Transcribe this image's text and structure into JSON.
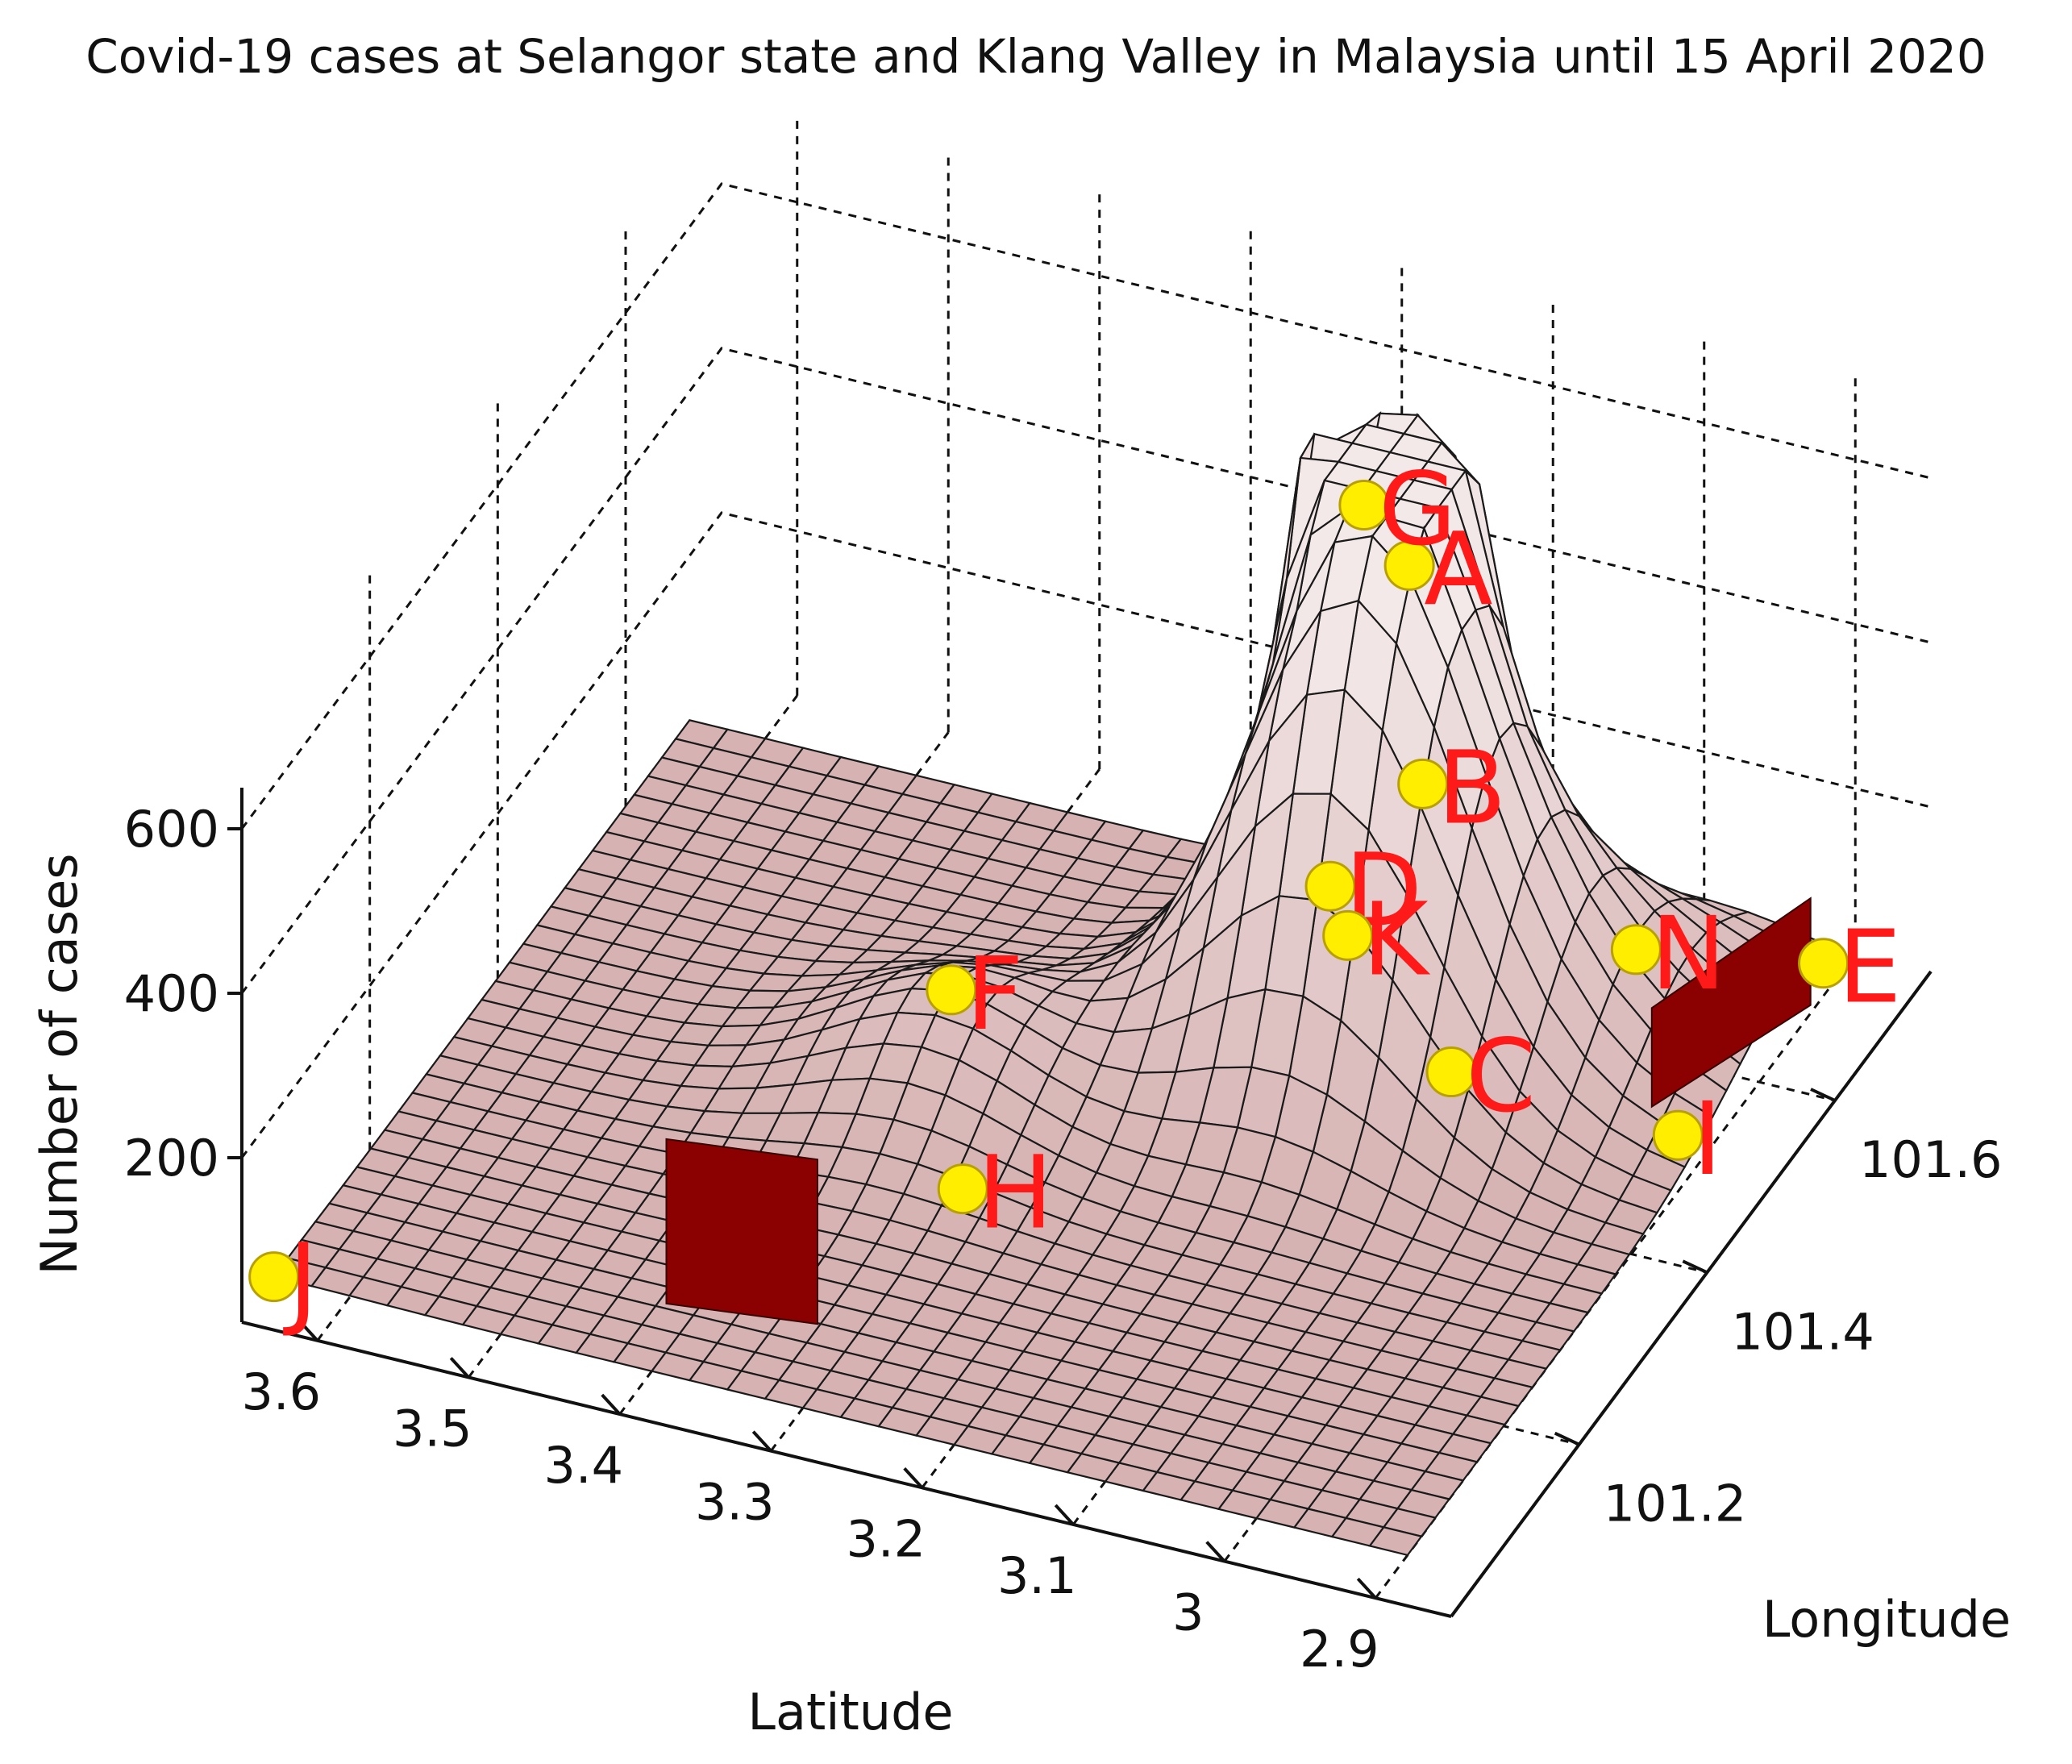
{
  "chart_data": {
    "type": "surface",
    "title": "Covid-19 cases at Selangor state and Klang Valley in Malaysia until 15 April 2020",
    "xlabel": "Latitude",
    "ylabel": "Longitude",
    "zlabel": "Number of cases",
    "x_ticks": [
      "3.6",
      "3.5",
      "3.4",
      "3.3",
      "3.2",
      "3.1",
      "3",
      "2.9"
    ],
    "y_ticks": [
      "101.2",
      "101.4",
      "101.6"
    ],
    "z_ticks": [
      "200",
      "400",
      "600"
    ],
    "xlim": [
      2.85,
      3.65
    ],
    "ylim": [
      101.0,
      101.75
    ],
    "zlim": [
      0,
      650
    ],
    "grid": true,
    "colors": {
      "surface": "#e8cfcf",
      "dark_patch": "#8b0000",
      "marker": "#ffee00",
      "label": "#ff1a1a"
    },
    "points": [
      {
        "label": "A",
        "lat": 3.14,
        "lon": 101.62,
        "cases": 500
      },
      {
        "label": "B",
        "lat": 3.11,
        "lon": 101.57,
        "cases": 300
      },
      {
        "label": "C",
        "lat": 3.07,
        "lon": 101.52,
        "cases": 20
      },
      {
        "label": "D",
        "lat": 3.15,
        "lon": 101.52,
        "cases": 210
      },
      {
        "label": "E",
        "lat": 2.9,
        "lon": 101.7,
        "cases": 40
      },
      {
        "label": "F",
        "lat": 3.35,
        "lon": 101.4,
        "cases": 120
      },
      {
        "label": "G",
        "lat": 3.17,
        "lon": 101.62,
        "cases": 560
      },
      {
        "label": "H",
        "lat": 3.3,
        "lon": 101.3,
        "cases": 5
      },
      {
        "label": "I",
        "lat": 2.92,
        "lon": 101.52,
        "cases": 10
      },
      {
        "label": "J",
        "lat": 3.65,
        "lon": 101.05,
        "cases": 3
      },
      {
        "label": "K",
        "lat": 3.13,
        "lon": 101.5,
        "cases": 180
      },
      {
        "label": "N",
        "lat": 2.99,
        "lon": 101.62,
        "cases": 100
      }
    ]
  }
}
